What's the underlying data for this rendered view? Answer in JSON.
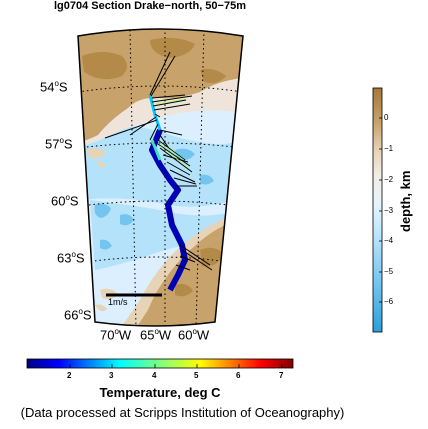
{
  "title": "lg0704 Section Drake−north, 50−75m",
  "map": {
    "lat_labels": [
      {
        "deg": "54",
        "hem": "S"
      },
      {
        "deg": "57",
        "hem": "S"
      },
      {
        "deg": "60",
        "hem": "S"
      },
      {
        "deg": "63",
        "hem": "S"
      },
      {
        "deg": "66",
        "hem": "S"
      }
    ],
    "lon_labels": [
      {
        "deg": "70",
        "hem": "W"
      },
      {
        "deg": "65",
        "hem": "W"
      },
      {
        "deg": "60",
        "hem": "W"
      }
    ],
    "velocity_scale_label": "1m/s",
    "colors": {
      "land": "#c8a26b",
      "land_dark": "#b48a48",
      "shelf": "#e7d3b6",
      "shallow": "#eee4da",
      "ocean_light": "#dcefff",
      "ocean_mid": "#b5e2fb",
      "ocean_deep": "#73c5f0",
      "vector": "#000000"
    }
  },
  "depth_colorbar": {
    "label": "depth, km",
    "ticks": [
      "0",
      "−1",
      "−2",
      "−3",
      "−4",
      "−5",
      "−6"
    ]
  },
  "temp_colorbar": {
    "label": "Temperature, deg C",
    "ticks": [
      "2",
      "3",
      "4",
      "5",
      "6",
      "7"
    ]
  },
  "credit": "(Data processed at Scripps Institution of Oceanography)"
}
